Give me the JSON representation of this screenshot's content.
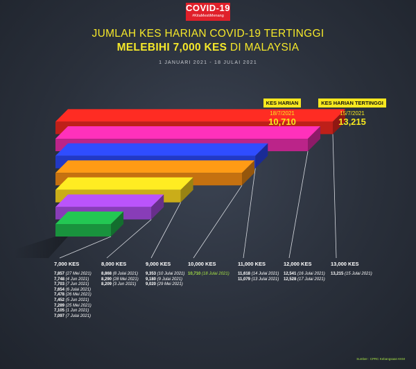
{
  "logo": {
    "title": "COVID-19",
    "hashtag": "#KitaMestiMenang"
  },
  "header": {
    "title_line1": "JUMLAH KES HARIAN COVID-19 TERTINGGI",
    "title_line2_bold": "MELEBIHI 7,000 KES",
    "title_line2_rest": " DI MALAYSIA",
    "date_range": "1 JANUARI 2021 - 18 JULAI 2021"
  },
  "badges": [
    {
      "label": "KES HARIAN",
      "date": "18/7/2021",
      "value": "10,710"
    },
    {
      "label": "KES HARIAN TERTINGGI",
      "date": "15/7/2021",
      "value": "13,215"
    }
  ],
  "colors": {
    "bars": [
      "#1fb24a",
      "#a64be0",
      "#f6d31e",
      "#f08a13",
      "#2a45f0",
      "#e42ca7",
      "#e8271f"
    ],
    "accent": "#f7e81f",
    "highlight": "#a4e045"
  },
  "chart_data": {
    "type": "bar",
    "orientation": "horizontal-3d",
    "categories": [
      "7,000 KES",
      "8,000 KES",
      "9,000 KES",
      "10,000 KES",
      "11,000 KES",
      "12,000 KES",
      "13,000 KES"
    ],
    "series": [
      {
        "values": [
          7097,
          8209,
          9020,
          10710,
          11079,
          12528,
          13215
        ]
      }
    ],
    "details": [
      [
        "7,857|27 Mei 2021",
        "7,748|4 Jun 2021",
        "7,703|7 Jun 2021",
        "7,654|6 Julai 2021",
        "7,478|26 Mei 2021",
        "7,452|5 Jun 2021",
        "7,289|25 Mei 2021",
        "7,105|1 Jun 2021",
        "7,097|7 Julai 2021"
      ],
      [
        "8,868|8 Julai 2021",
        "8,290|28 Mei 2021",
        "8,209|3 Jun 2021"
      ],
      [
        "9,353|10 Julai 2021",
        "9,180|9 Julai 2021",
        "9,020|29 Mei 2021"
      ],
      [
        "10,710|18 Julai 2021"
      ],
      [
        "11,618|14 Julai 2021",
        "11,079|13 Julai 2021"
      ],
      [
        "12,541|16 Julai 2021",
        "12,528|17 Julai 2021"
      ],
      [
        "13,215|15 Julai 2021"
      ]
    ],
    "highlight": "10,710|18 Julai 2021"
  },
  "source": "Sumber : CPRC Kebangsaan KKM"
}
